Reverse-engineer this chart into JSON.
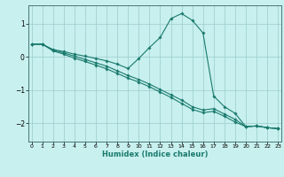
{
  "xlabel": "Humidex (Indice chaleur)",
  "bg_color": "#c8f0ee",
  "grid_color": "#99cccc",
  "line_color": "#1a7a6e",
  "x": [
    0,
    1,
    2,
    3,
    4,
    5,
    6,
    7,
    8,
    9,
    10,
    11,
    12,
    13,
    14,
    15,
    16,
    17,
    18,
    19,
    20,
    21,
    22,
    23
  ],
  "line1": [
    0.38,
    0.38,
    0.22,
    0.16,
    0.08,
    0.02,
    -0.05,
    -0.12,
    -0.22,
    -0.35,
    -0.05,
    0.28,
    0.58,
    1.15,
    1.3,
    1.1,
    0.72,
    -1.18,
    -1.5,
    -1.7,
    -2.1,
    -2.08,
    -2.13,
    -2.16
  ],
  "line2": [
    0.38,
    0.38,
    0.2,
    0.12,
    0.02,
    -0.08,
    -0.18,
    -0.28,
    -0.42,
    -0.56,
    -0.68,
    -0.82,
    -0.98,
    -1.14,
    -1.3,
    -1.5,
    -1.6,
    -1.56,
    -1.72,
    -1.88,
    -2.1,
    -2.08,
    -2.13,
    -2.16
  ],
  "line3": [
    0.38,
    0.38,
    0.18,
    0.08,
    -0.04,
    -0.14,
    -0.25,
    -0.36,
    -0.5,
    -0.64,
    -0.76,
    -0.9,
    -1.06,
    -1.22,
    -1.4,
    -1.58,
    -1.68,
    -1.64,
    -1.79,
    -1.96,
    -2.1,
    -2.08,
    -2.13,
    -2.16
  ],
  "xlim": [
    -0.3,
    23.3
  ],
  "ylim": [
    -2.55,
    1.55
  ],
  "yticks": [
    -2,
    -1,
    0,
    1
  ],
  "xticks": [
    0,
    1,
    2,
    3,
    4,
    5,
    6,
    7,
    8,
    9,
    10,
    11,
    12,
    13,
    14,
    15,
    16,
    17,
    18,
    19,
    20,
    21,
    22,
    23
  ]
}
